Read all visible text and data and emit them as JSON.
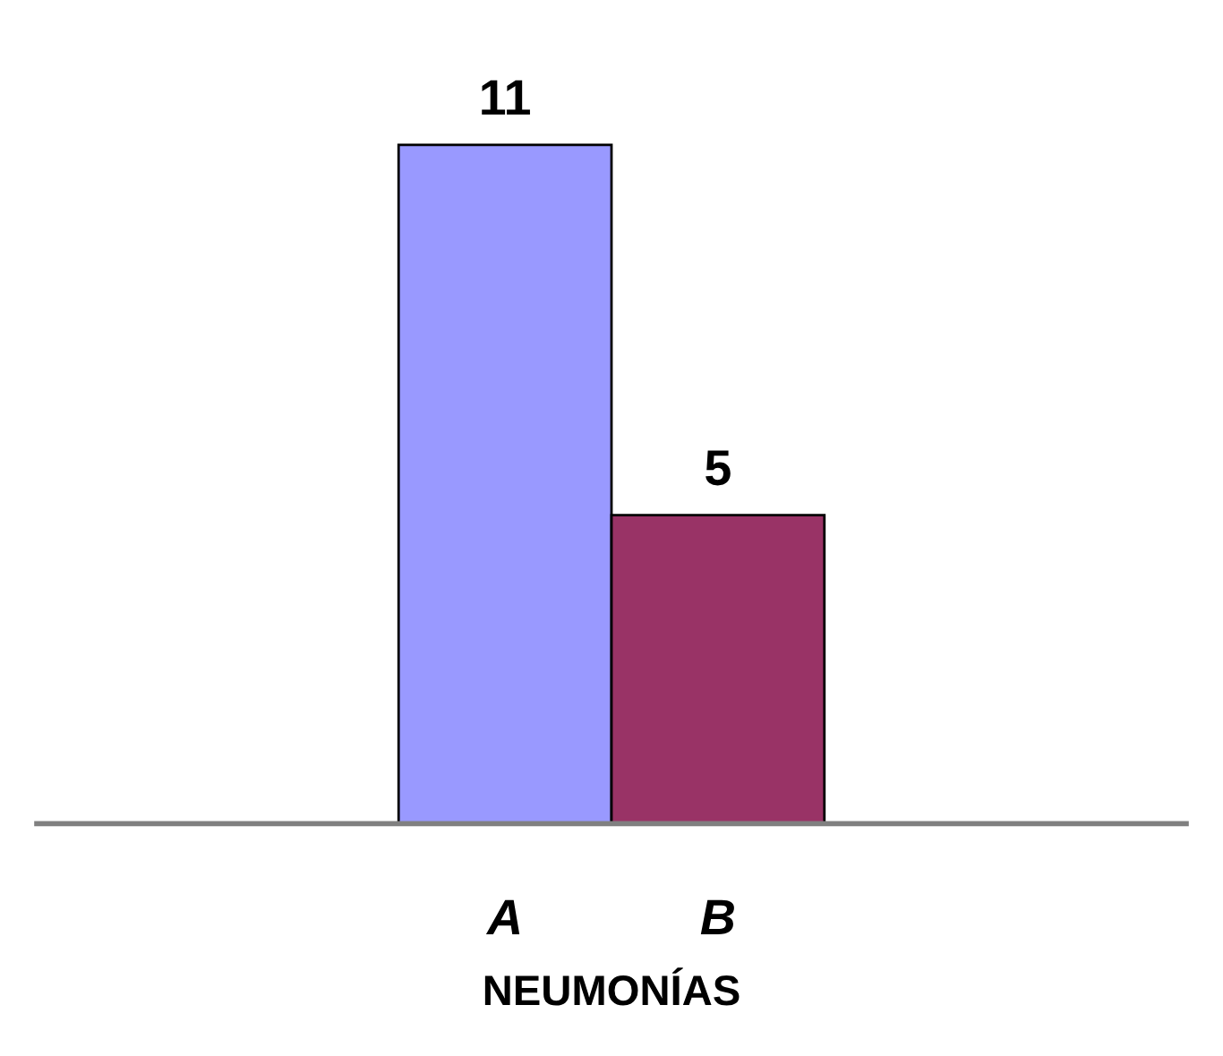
{
  "chart_data": {
    "type": "bar",
    "xlabel": "NEUMONÍAS",
    "categories": [
      "A",
      "B"
    ],
    "values": [
      11,
      5
    ],
    "colors": [
      "#9999ff",
      "#993366"
    ],
    "data_labels": true
  }
}
